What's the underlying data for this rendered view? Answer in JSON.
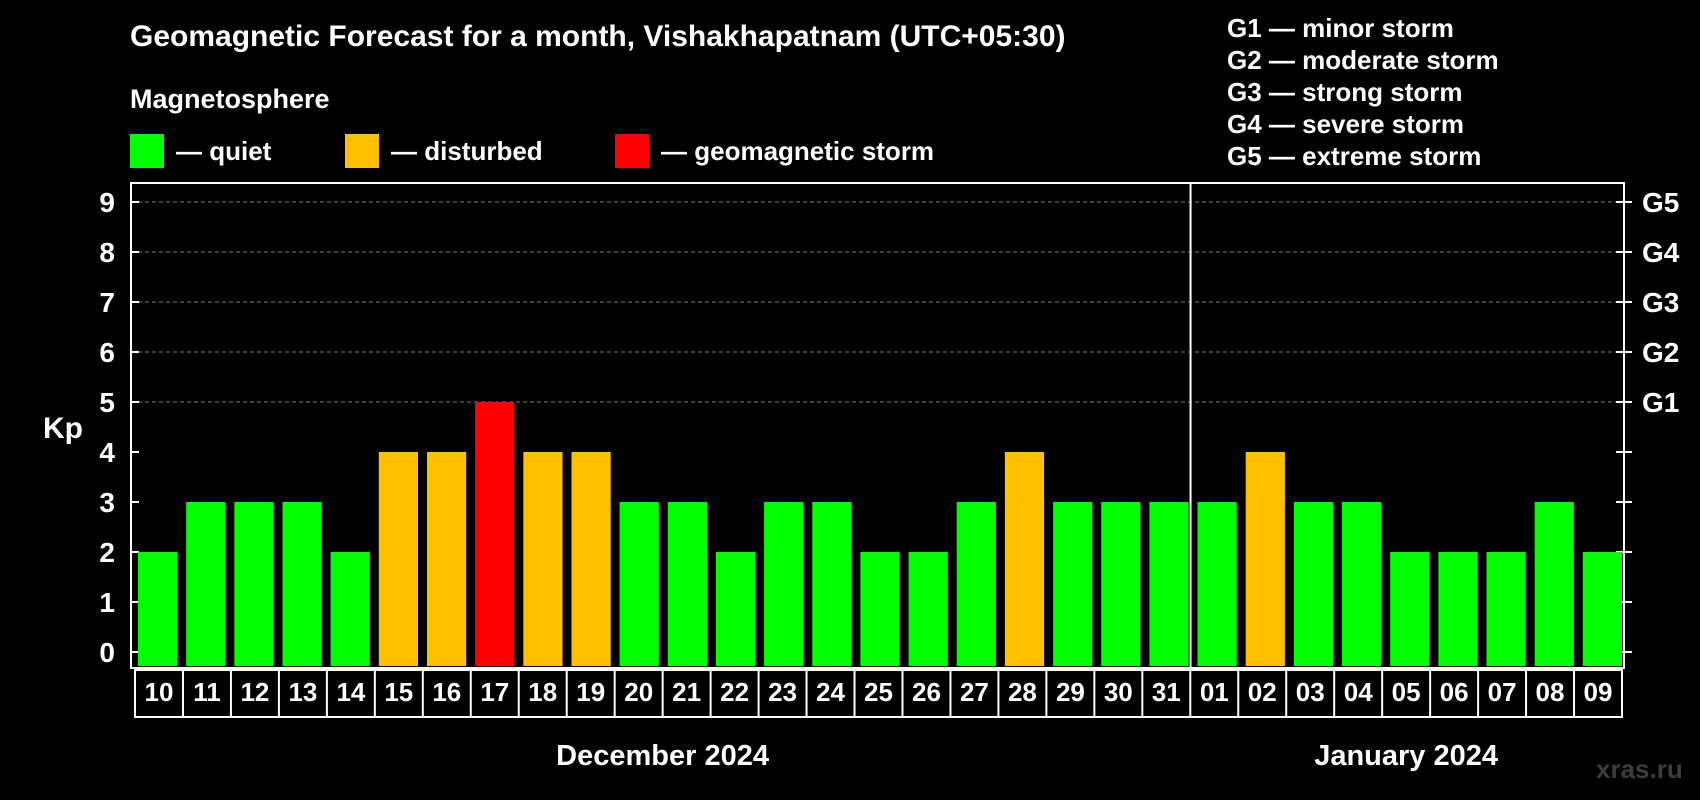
{
  "chart_data": {
    "type": "bar",
    "title": "Geomagnetic Forecast for a month, Vishakhapatnam (UTC+05:30)",
    "subtitle": "Magnetosphere",
    "ylabel": "Kp",
    "ylim": [
      0,
      9
    ],
    "yticks": [
      "0",
      "1",
      "2",
      "3",
      "4",
      "5",
      "6",
      "7",
      "8",
      "9"
    ],
    "right_labels": [
      {
        "kp": 5,
        "label": "G1"
      },
      {
        "kp": 6,
        "label": "G2"
      },
      {
        "kp": 7,
        "label": "G3"
      },
      {
        "kp": 8,
        "label": "G4"
      },
      {
        "kp": 9,
        "label": "G5"
      }
    ],
    "legend": [
      {
        "label": "— quiet",
        "color": "#00ff00"
      },
      {
        "label": "— disturbed",
        "color": "#ffc000"
      },
      {
        "label": "— geomagnetic storm",
        "color": "#ff0000"
      }
    ],
    "storm_levels": [
      "G1 — minor storm",
      "G2 — moderate storm",
      "G3 — strong storm",
      "G4 — severe storm",
      "G5 — extreme storm"
    ],
    "categories": [
      "10",
      "11",
      "12",
      "13",
      "14",
      "15",
      "16",
      "17",
      "18",
      "19",
      "20",
      "21",
      "22",
      "23",
      "24",
      "25",
      "26",
      "27",
      "28",
      "29",
      "30",
      "31",
      "01",
      "02",
      "03",
      "04",
      "05",
      "06",
      "07",
      "08",
      "09"
    ],
    "values": [
      2,
      3,
      3,
      3,
      2,
      4,
      4,
      5,
      4,
      4,
      3,
      3,
      2,
      3,
      3,
      2,
      2,
      3,
      4,
      3,
      3,
      3,
      3,
      4,
      3,
      3,
      2,
      2,
      2,
      3,
      2
    ],
    "months": [
      {
        "label": "December 2024",
        "start": 0,
        "count": 22
      },
      {
        "label": "January 2024",
        "start": 22,
        "count": 9
      }
    ],
    "colors": {
      "quiet": "#00ff00",
      "disturbed": "#ffc000",
      "storm": "#ff0000"
    },
    "grid": true
  },
  "watermark": "xras.ru"
}
